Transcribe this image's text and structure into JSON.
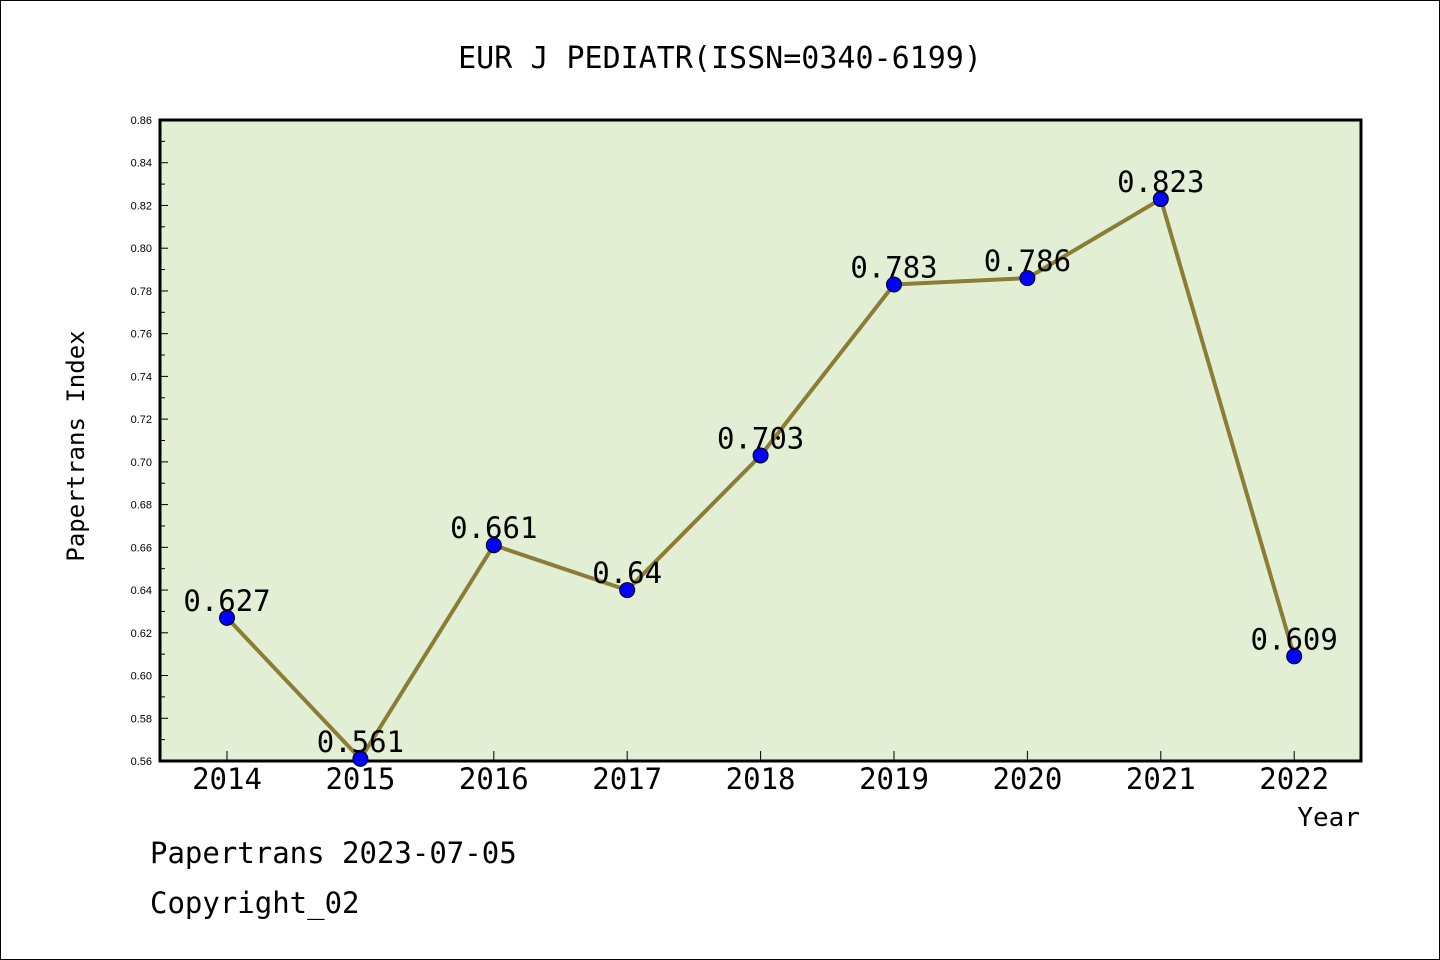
{
  "chart_data": {
    "type": "line",
    "title": "EUR J PEDIATR(ISSN=0340-6199)",
    "xlabel": "Year",
    "ylabel": "Papertrans Index",
    "x": [
      "2014",
      "2015",
      "2016",
      "2017",
      "2018",
      "2019",
      "2020",
      "2021",
      "2022"
    ],
    "series": [
      {
        "values": [
          0.627,
          0.561,
          0.661,
          0.64,
          0.703,
          0.783,
          0.786,
          0.823,
          0.609
        ],
        "labels": [
          "0.627",
          "0.561",
          "0.661",
          "0.64",
          "0.703",
          "0.783",
          "0.786",
          "0.823",
          "0.609"
        ]
      }
    ],
    "ylim": [
      0.56,
      0.86
    ],
    "yticks": [
      "0.56",
      "0.58",
      "0.60",
      "0.62",
      "0.64",
      "0.66",
      "0.68",
      "0.70",
      "0.72",
      "0.74",
      "0.76",
      "0.78",
      "0.80",
      "0.82",
      "0.84",
      "0.86"
    ],
    "grid": false,
    "legend": "none",
    "colors": {
      "plot_background": "#e2efd5",
      "line": "#8b7d35",
      "marker": "#0000ff"
    }
  },
  "footer": {
    "source": "Papertrans 2023-07-05",
    "copyright": "Copyright_02"
  }
}
